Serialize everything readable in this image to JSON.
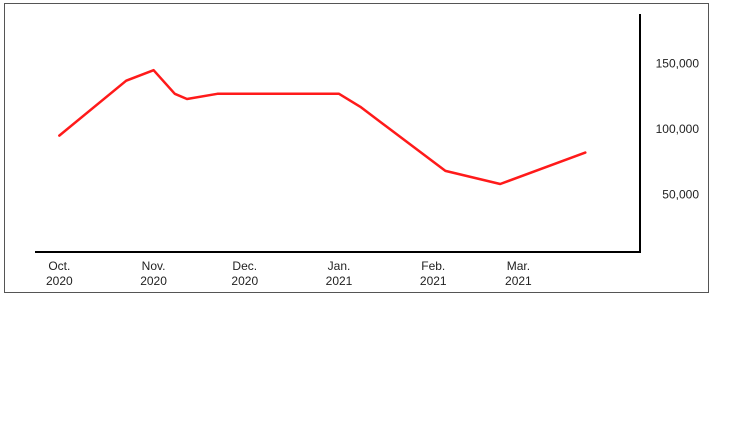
{
  "chart_data": {
    "type": "line",
    "title": "",
    "xlabel": "",
    "ylabel": "",
    "x_ticks": [
      {
        "line1": "Oct.",
        "line2": "2020"
      },
      {
        "line1": "Nov.",
        "line2": "2020"
      },
      {
        "line1": "Dec.",
        "line2": "2020"
      },
      {
        "line1": "Jan.",
        "line2": "2021"
      },
      {
        "line1": "Feb.",
        "line2": "2021"
      },
      {
        "line1": "Mar.",
        "line2": "2021"
      }
    ],
    "y_ticks": [
      {
        "value": 50000,
        "label": "50,000"
      },
      {
        "value": 100000,
        "label": "100,000"
      },
      {
        "value": 150000,
        "label": "150,000"
      }
    ],
    "x_range": [
      "2020-09-23",
      "2021-04-10"
    ],
    "ylim": [
      6000,
      188000
    ],
    "y_axis_position": "right",
    "grid": false,
    "legend": "none",
    "series": [
      {
        "color": "#ff1a1a",
        "points": [
          {
            "x": "2020-10-01",
            "y": 95000
          },
          {
            "x": "2020-10-23",
            "y": 137000
          },
          {
            "x": "2020-11-01",
            "y": 145000
          },
          {
            "x": "2020-11-08",
            "y": 127000
          },
          {
            "x": "2020-11-12",
            "y": 123000
          },
          {
            "x": "2020-11-22",
            "y": 127000
          },
          {
            "x": "2020-12-01",
            "y": 127000
          },
          {
            "x": "2021-01-01",
            "y": 127000
          },
          {
            "x": "2021-01-08",
            "y": 117000
          },
          {
            "x": "2021-02-05",
            "y": 68000
          },
          {
            "x": "2021-02-23",
            "y": 58000
          },
          {
            "x": "2021-03-23",
            "y": 82000
          }
        ]
      }
    ]
  }
}
